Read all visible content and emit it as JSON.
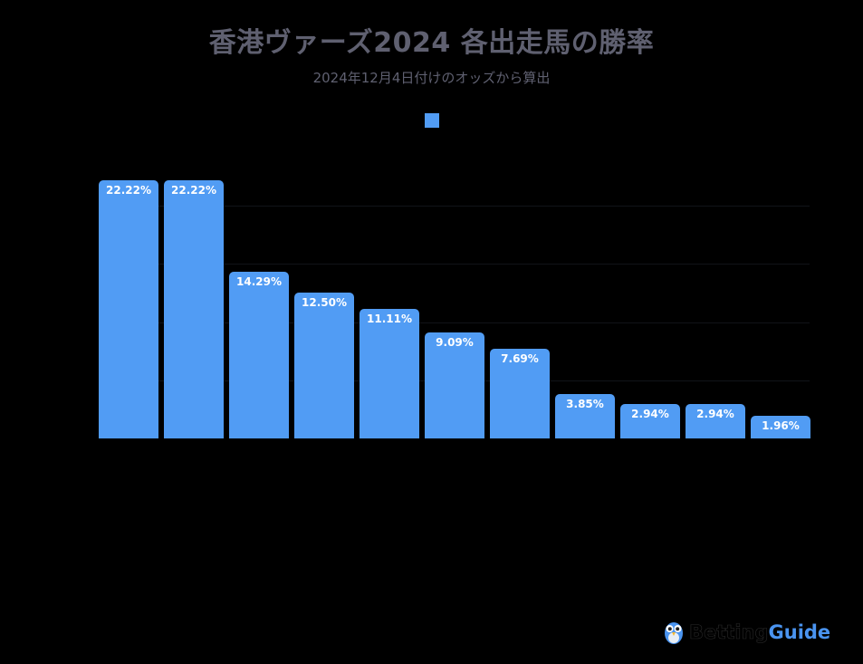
{
  "chart_data": {
    "type": "bar",
    "title": "香港ヴァーズ2024 各出走馬の勝率",
    "subtitle": "2024年12月4日付けのオッズから算出",
    "categories": [
      "",
      "",
      "",
      "",
      "",
      "",
      "",
      "",
      "",
      "",
      ""
    ],
    "series": [
      {
        "name": "",
        "color": "#519cf4",
        "values": [
          22.22,
          22.22,
          14.29,
          12.5,
          11.11,
          9.09,
          7.69,
          3.85,
          2.94,
          2.94,
          1.96
        ],
        "labels": [
          "22.22%",
          "22.22%",
          "14.29%",
          "12.50%",
          "11.11%",
          "9.09%",
          "7.69%",
          "3.85%",
          "2.94%",
          "2.94%",
          "1.96%"
        ]
      }
    ],
    "xlabel": "",
    "ylabel": "",
    "ylim": [
      0,
      26
    ],
    "gridlines": [
      5,
      10,
      15,
      20
    ],
    "grid": true,
    "legend_position": "top"
  },
  "logo": {
    "part1": "Betting",
    "part2": "Guide",
    "icon": "owl-mascot-icon"
  }
}
